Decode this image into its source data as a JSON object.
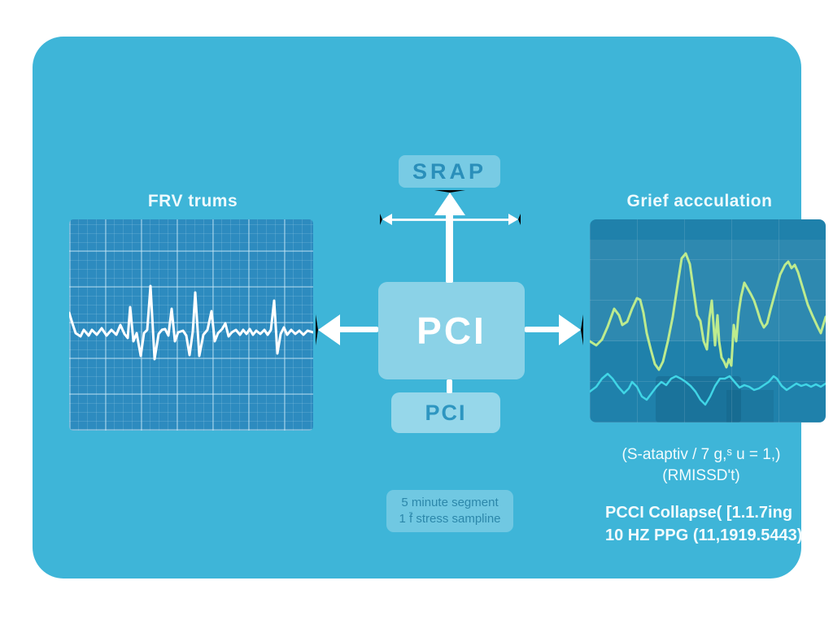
{
  "diagram": {
    "top_box": {
      "label": "SRAP"
    },
    "left_panel": {
      "title": "FRV trums"
    },
    "right_panel": {
      "title": "Grief accculation"
    },
    "center_box": {
      "label": "PCI"
    },
    "output_box": {
      "label": "PCI"
    },
    "note_box": {
      "line1": "5 minute segment",
      "line2": "1 f̄ stress sampline"
    },
    "annotations": {
      "formula_line1": "(S-ataptiv / 7 g,ˢ u = 1,)",
      "formula_line2": "(RMISSDʹt)",
      "detail_line1": "PCCI Collapse( [1.1.7ing",
      "detail_line2": "10 HZ PPG (11,1919.5443)"
    },
    "colors": {
      "outer_background": "#ffffff",
      "canvas_background": "#3eb5d8",
      "box_text_teal": "#2a8fba",
      "arrow_white": "#ffffff",
      "ecg_panel_background": "#2d8bbf",
      "signal_panel_background": "#1f81ab",
      "ecg_trace": "#ffffff",
      "signal_primary": "#bdeb8e",
      "signal_secondary": "#40d5e6"
    }
  },
  "chart_data": [
    {
      "type": "line",
      "name": "hrv-ecg-trace",
      "title": "FRV trums",
      "grid": true,
      "series": [
        {
          "name": "ecg",
          "color": "#ffffff",
          "points": [
            [
              0,
              115
            ],
            [
              4,
              128
            ],
            [
              8,
              140
            ],
            [
              14,
              144
            ],
            [
              18,
              136
            ],
            [
              24,
              143
            ],
            [
              28,
              136
            ],
            [
              34,
              142
            ],
            [
              40,
              134
            ],
            [
              46,
              143
            ],
            [
              52,
              136
            ],
            [
              58,
              142
            ],
            [
              63,
              130
            ],
            [
              68,
              141
            ],
            [
              72,
              146
            ],
            [
              75,
              108
            ],
            [
              79,
              150
            ],
            [
              83,
              140
            ],
            [
              88,
              168
            ],
            [
              92,
              140
            ],
            [
              96,
              136
            ],
            [
              100,
              82
            ],
            [
              105,
              172
            ],
            [
              110,
              141
            ],
            [
              114,
              136
            ],
            [
              118,
              135
            ],
            [
              122,
              143
            ],
            [
              126,
              110
            ],
            [
              130,
              150
            ],
            [
              134,
              139
            ],
            [
              140,
              137
            ],
            [
              144,
              143
            ],
            [
              148,
              167
            ],
            [
              152,
              138
            ],
            [
              155,
              90
            ],
            [
              160,
              168
            ],
            [
              165,
              142
            ],
            [
              170,
              136
            ],
            [
              175,
              113
            ],
            [
              179,
              150
            ],
            [
              183,
              140
            ],
            [
              188,
              135
            ],
            [
              192,
              128
            ],
            [
              196,
              144
            ],
            [
              200,
              139
            ],
            [
              205,
              136
            ],
            [
              210,
              142
            ],
            [
              214,
              136
            ],
            [
              218,
              141
            ],
            [
              222,
              135
            ],
            [
              226,
              142
            ],
            [
              230,
              137
            ],
            [
              235,
              141
            ],
            [
              240,
              136
            ],
            [
              244,
              142
            ],
            [
              248,
              136
            ],
            [
              252,
              100
            ],
            [
              256,
              165
            ],
            [
              260,
              141
            ],
            [
              264,
              133
            ],
            [
              268,
              142
            ],
            [
              273,
              136
            ],
            [
              278,
              141
            ],
            [
              283,
              137
            ],
            [
              288,
              142
            ],
            [
              293,
              137
            ],
            [
              300,
              139
            ]
          ]
        }
      ]
    },
    {
      "type": "line",
      "name": "stress-accumulation-signal",
      "title": "Grief accculation",
      "grid": true,
      "series": [
        {
          "name": "primary-wave",
          "color": "#bdeb8e",
          "points": [
            [
              0,
              150
            ],
            [
              8,
              155
            ],
            [
              15,
              148
            ],
            [
              22,
              132
            ],
            [
              30,
              110
            ],
            [
              36,
              118
            ],
            [
              40,
              130
            ],
            [
              46,
              126
            ],
            [
              52,
              110
            ],
            [
              58,
              97
            ],
            [
              62,
              99
            ],
            [
              66,
              115
            ],
            [
              70,
              140
            ],
            [
              75,
              160
            ],
            [
              80,
              178
            ],
            [
              85,
              185
            ],
            [
              90,
              175
            ],
            [
              96,
              150
            ],
            [
              102,
              120
            ],
            [
              108,
              80
            ],
            [
              113,
              48
            ],
            [
              118,
              42
            ],
            [
              123,
              55
            ],
            [
              128,
              90
            ],
            [
              132,
              118
            ],
            [
              136,
              125
            ],
            [
              140,
              150
            ],
            [
              144,
              160
            ],
            [
              147,
              122
            ],
            [
              150,
              100
            ],
            [
              152,
              128
            ],
            [
              154,
              155
            ],
            [
              157,
              118
            ],
            [
              159,
              150
            ],
            [
              162,
              170
            ],
            [
              165,
              175
            ],
            [
              168,
              182
            ],
            [
              171,
              172
            ],
            [
              174,
              180
            ],
            [
              177,
              130
            ],
            [
              180,
              150
            ],
            [
              183,
              115
            ],
            [
              186,
              95
            ],
            [
              190,
              78
            ],
            [
              194,
              85
            ],
            [
              198,
              92
            ],
            [
              202,
              100
            ],
            [
              206,
              112
            ],
            [
              210,
              125
            ],
            [
              214,
              133
            ],
            [
              218,
              128
            ],
            [
              222,
              112
            ],
            [
              228,
              90
            ],
            [
              234,
              68
            ],
            [
              240,
              56
            ],
            [
              244,
              52
            ],
            [
              248,
              60
            ],
            [
              252,
              56
            ],
            [
              256,
              65
            ],
            [
              262,
              85
            ],
            [
              268,
              105
            ],
            [
              274,
              119
            ],
            [
              280,
              132
            ],
            [
              284,
              140
            ],
            [
              287,
              130
            ],
            [
              290,
              120
            ]
          ]
        },
        {
          "name": "secondary-wave",
          "color": "#40d5e6",
          "points": [
            [
              0,
              212
            ],
            [
              8,
              206
            ],
            [
              15,
              196
            ],
            [
              22,
              190
            ],
            [
              28,
              196
            ],
            [
              35,
              206
            ],
            [
              42,
              214
            ],
            [
              48,
              208
            ],
            [
              52,
              200
            ],
            [
              58,
              206
            ],
            [
              64,
              218
            ],
            [
              70,
              222
            ],
            [
              76,
              214
            ],
            [
              82,
              206
            ],
            [
              88,
              200
            ],
            [
              94,
              204
            ],
            [
              100,
              196
            ],
            [
              106,
              193
            ],
            [
              112,
              196
            ],
            [
              118,
              200
            ],
            [
              124,
              205
            ],
            [
              130,
              212
            ],
            [
              136,
              222
            ],
            [
              142,
              228
            ],
            [
              148,
              218
            ],
            [
              154,
              205
            ],
            [
              160,
              196
            ],
            [
              166,
              196
            ],
            [
              172,
              193
            ],
            [
              178,
              200
            ],
            [
              184,
              207
            ],
            [
              190,
              204
            ],
            [
              196,
              206
            ],
            [
              202,
              210
            ],
            [
              208,
              208
            ],
            [
              214,
              204
            ],
            [
              220,
              200
            ],
            [
              226,
              193
            ],
            [
              230,
              196
            ],
            [
              236,
              205
            ],
            [
              242,
              210
            ],
            [
              248,
              206
            ],
            [
              254,
              202
            ],
            [
              260,
              205
            ],
            [
              266,
              203
            ],
            [
              272,
              206
            ],
            [
              278,
              203
            ],
            [
              284,
              206
            ],
            [
              290,
              202
            ]
          ]
        }
      ]
    }
  ]
}
